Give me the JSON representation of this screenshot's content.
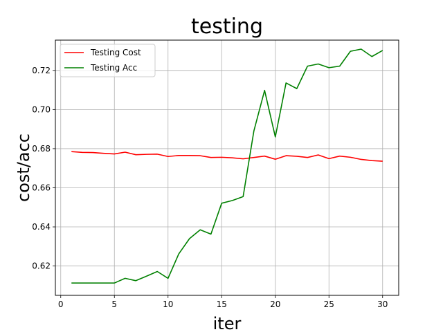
{
  "chart_data": {
    "type": "line",
    "title": "testing",
    "xlabel": "iter",
    "ylabel": "cost/acc",
    "xlim": [
      -0.5,
      31.5
    ],
    "ylim": [
      0.605,
      0.7355
    ],
    "xticks": [
      0,
      5,
      10,
      15,
      20,
      25,
      30
    ],
    "yticks": [
      0.62,
      0.64,
      0.66,
      0.68,
      0.7,
      0.72
    ],
    "ytick_labels": [
      "0.62",
      "0.64",
      "0.66",
      "0.68",
      "0.70",
      "0.72"
    ],
    "grid": true,
    "legend_position": "top-left",
    "x": [
      1,
      2,
      3,
      4,
      5,
      6,
      7,
      8,
      9,
      10,
      11,
      12,
      13,
      14,
      15,
      16,
      17,
      18,
      19,
      20,
      21,
      22,
      23,
      24,
      25,
      26,
      27,
      28,
      29,
      30
    ],
    "series": [
      {
        "name": "Testing Cost",
        "color": "#ff0000",
        "values": [
          0.6785,
          0.6781,
          0.678,
          0.6776,
          0.6773,
          0.6782,
          0.6769,
          0.6771,
          0.6772,
          0.676,
          0.6765,
          0.6765,
          0.6764,
          0.6755,
          0.6756,
          0.6753,
          0.6748,
          0.6755,
          0.6762,
          0.6746,
          0.6764,
          0.6761,
          0.6755,
          0.6768,
          0.6749,
          0.6762,
          0.6756,
          0.6745,
          0.6739,
          0.6736
        ]
      },
      {
        "name": "Testing Acc",
        "color": "#008000",
        "values": [
          0.6113,
          0.6113,
          0.6113,
          0.6113,
          0.6113,
          0.6137,
          0.6125,
          0.6148,
          0.6172,
          0.6137,
          0.6262,
          0.634,
          0.6385,
          0.6363,
          0.6521,
          0.6535,
          0.6555,
          0.689,
          0.7098,
          0.686,
          0.7136,
          0.7107,
          0.7222,
          0.7233,
          0.7214,
          0.7222,
          0.7298,
          0.7309,
          0.7271,
          0.7302
        ]
      }
    ]
  }
}
